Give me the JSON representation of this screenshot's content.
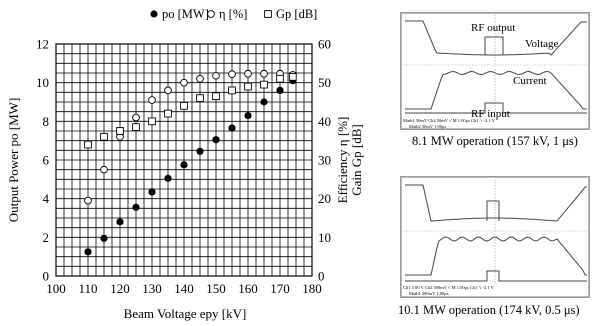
{
  "chart_data": [
    {
      "type": "scatter",
      "title": "",
      "xlabel": "Beam Voltage epy [kV]",
      "ylabel_left": "Output Power po [MW]",
      "ylabel_right_lines": [
        "Efficiency  η [%]",
        "Gain Gp [dB]"
      ],
      "xlim": [
        100,
        180
      ],
      "ylim_left": [
        0,
        12
      ],
      "ylim_right": [
        0,
        60
      ],
      "x_ticks": [
        "100",
        "110",
        "120",
        "130",
        "140",
        "150",
        "160",
        "170",
        "180"
      ],
      "y_left_ticks": [
        "0",
        "2",
        "4",
        "6",
        "8",
        "10",
        "12"
      ],
      "y_right_ticks": [
        "0",
        "10",
        "20",
        "30",
        "40",
        "50",
        "60"
      ],
      "grid": true,
      "legend_position": "top",
      "series": [
        {
          "name": "po [MW]",
          "axis": "left",
          "marker": "filled-circle",
          "x": [
            110,
            115,
            120,
            125,
            130,
            135,
            140,
            145,
            150,
            155,
            160,
            165,
            170,
            174
          ],
          "y": [
            1.25,
            1.95,
            2.8,
            3.55,
            4.35,
            5.05,
            5.75,
            6.45,
            7.05,
            7.65,
            8.3,
            9.0,
            9.6,
            10.1
          ]
        },
        {
          "name": "η [%]",
          "axis": "right",
          "marker": "open-circle",
          "x": [
            110,
            115,
            120,
            125,
            130,
            135,
            140,
            145,
            150,
            155,
            160,
            165,
            170,
            174
          ],
          "y": [
            19.5,
            27.5,
            36,
            41,
            45.5,
            48,
            50,
            51,
            51.8,
            52.2,
            52.3,
            52.3,
            52.3,
            52
          ]
        },
        {
          "name": "Gp [dB]",
          "axis": "right",
          "marker": "open-square",
          "x": [
            110,
            115,
            120,
            125,
            130,
            135,
            140,
            145,
            150,
            155,
            160,
            165,
            170,
            174
          ],
          "y": [
            34,
            36,
            37.5,
            38.5,
            40,
            42,
            44,
            46,
            46.5,
            48,
            49,
            49.5,
            51,
            51.5
          ]
        }
      ]
    },
    {
      "type": "line",
      "title": "",
      "caption": "8.1 MW operation (157 kV, 1 μs)",
      "annotations": [
        "RF output",
        "Voltage",
        "Current",
        "RF input"
      ],
      "status_line": "Math1   50mV   Ch2   50mV  √ M 1.00μs  Ch1 ∖    -2.1 V",
      "status_line_2": "Math2       50mV    1.00μs"
    },
    {
      "type": "line",
      "title": "",
      "caption": "10.1 MW operation (174 kV, 0.5 μs)",
      "annotations": [],
      "status_line": "Ch1   5.00 V    Ch2   500mV  √ M 1.00μs  Ch1 ∖    -2.1 V",
      "status_line_2": "Math1      200mV    1.00μs"
    }
  ]
}
